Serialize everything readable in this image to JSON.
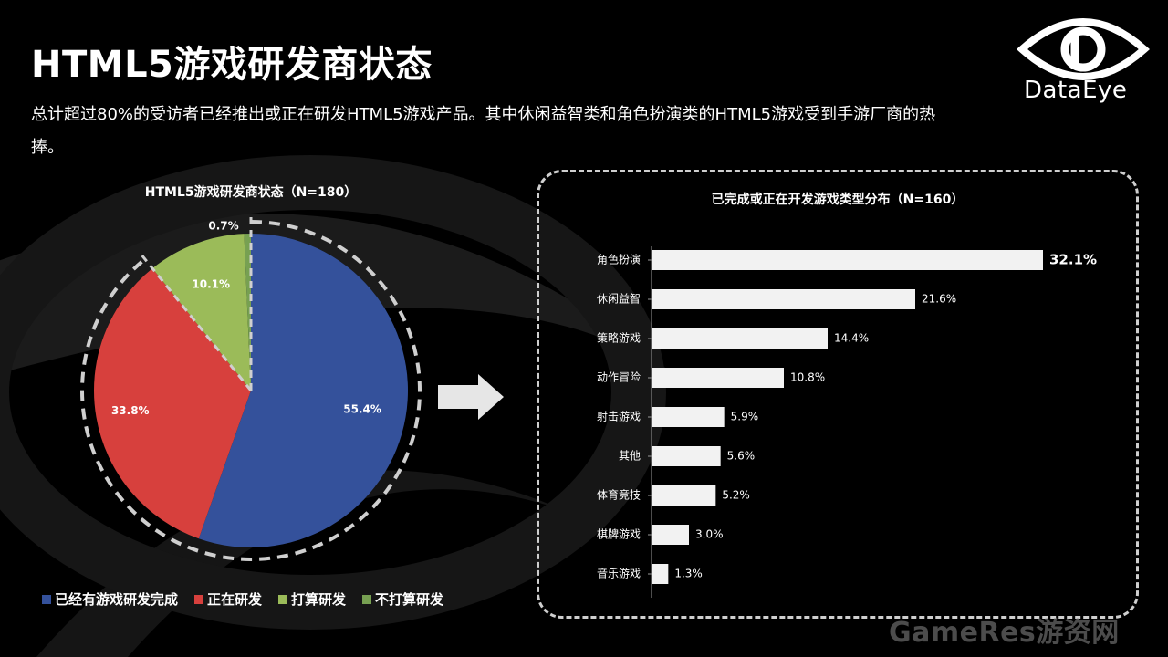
{
  "page": {
    "title": "HTML5游戏研发商状态",
    "subtitle": "总计超过80%的受访者已经推出或正在研发HTML5游戏产品。其中休闲益智类和角色扮演类的HTML5游戏受到手游厂商的热捧。",
    "logo_text": "DataEye",
    "watermark": "GameRes游资网"
  },
  "colors": {
    "blue": "#34519b",
    "red": "#d7403d",
    "green": "#9bbb59",
    "bar": "#f2f2f2",
    "dashed": "#cfcfcf"
  },
  "chart_data": [
    {
      "type": "pie",
      "title": "HTML5游戏研发商状态（N=180）",
      "categories": [
        "已经有游戏研发完成",
        "正在研发",
        "打算研发",
        "不打算研发"
      ],
      "values": [
        55.4,
        33.8,
        10.1,
        0.7
      ],
      "value_labels": [
        "55.4%",
        "33.8%",
        "10.1%",
        "0.7%"
      ],
      "colors": [
        "#34519b",
        "#d7403d",
        "#9bbb59",
        "#77a052"
      ],
      "legend": "bottom"
    },
    {
      "type": "bar",
      "orientation": "horizontal",
      "title": "已完成或正在开发游戏类型分布（N=160）",
      "categories": [
        "角色扮演",
        "休闲益智",
        "策略游戏",
        "动作冒险",
        "射击游戏",
        "其他",
        "体育竞技",
        "棋牌游戏",
        "音乐游戏"
      ],
      "values": [
        32.1,
        21.6,
        14.4,
        10.8,
        5.9,
        5.6,
        5.2,
        3.0,
        1.3
      ],
      "value_labels": [
        "32.1%",
        "21.6%",
        "14.4%",
        "10.8%",
        "5.9%",
        "5.6%",
        "5.2%",
        "3.0%",
        "1.3%"
      ],
      "grid": false
    }
  ]
}
